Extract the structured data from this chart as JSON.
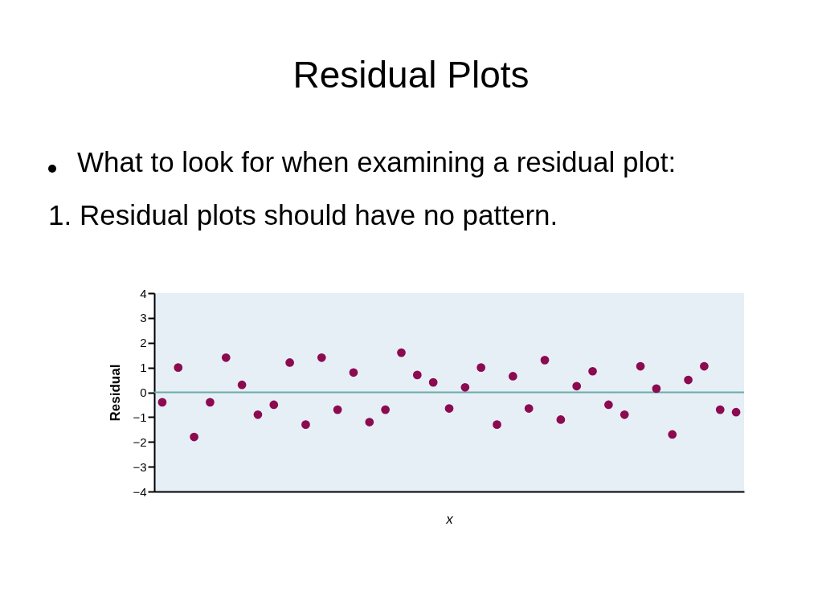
{
  "chart_data": {
    "type": "scatter",
    "title": "Residual Plots",
    "annotations": [
      "What to look for when examining a residual plot:",
      "1. Residual plots should have no pattern."
    ],
    "xlabel": "x",
    "ylabel": "Residual",
    "color": "#8b0a50",
    "marker": "circle",
    "tick_labels": "y",
    "categories": [
      null,
      null,
      null,
      null,
      null,
      null,
      null,
      null,
      null,
      null,
      null,
      null,
      null,
      null,
      null,
      null,
      null,
      null,
      null,
      null,
      null,
      null,
      null,
      null,
      null,
      null,
      null,
      null,
      null,
      null,
      null,
      null,
      null,
      null,
      null,
      null,
      null
    ],
    "values": [
      -0.4,
      1.0,
      -1.8,
      -0.4,
      1.4,
      0.3,
      -0.9,
      -0.5,
      1.2,
      -1.3,
      1.4,
      -0.7,
      0.8,
      -1.2,
      -0.7,
      1.6,
      0.7,
      0.4,
      -0.65,
      0.2,
      1.0,
      -1.3,
      0.65,
      -0.65,
      1.3,
      -1.1,
      0.25,
      0.85,
      -0.5,
      -0.9,
      1.05,
      0.15,
      -1.7,
      0.5,
      1.05,
      -0.7,
      -0.8
    ],
    "ylim": [
      -4,
      4
    ],
    "yticks": [
      -4,
      -3,
      -2,
      -1,
      0,
      1,
      2,
      3,
      4
    ],
    "ref_lines": [
      {
        "axis": "y",
        "value": 0,
        "color": "#6aaba8"
      }
    ]
  }
}
